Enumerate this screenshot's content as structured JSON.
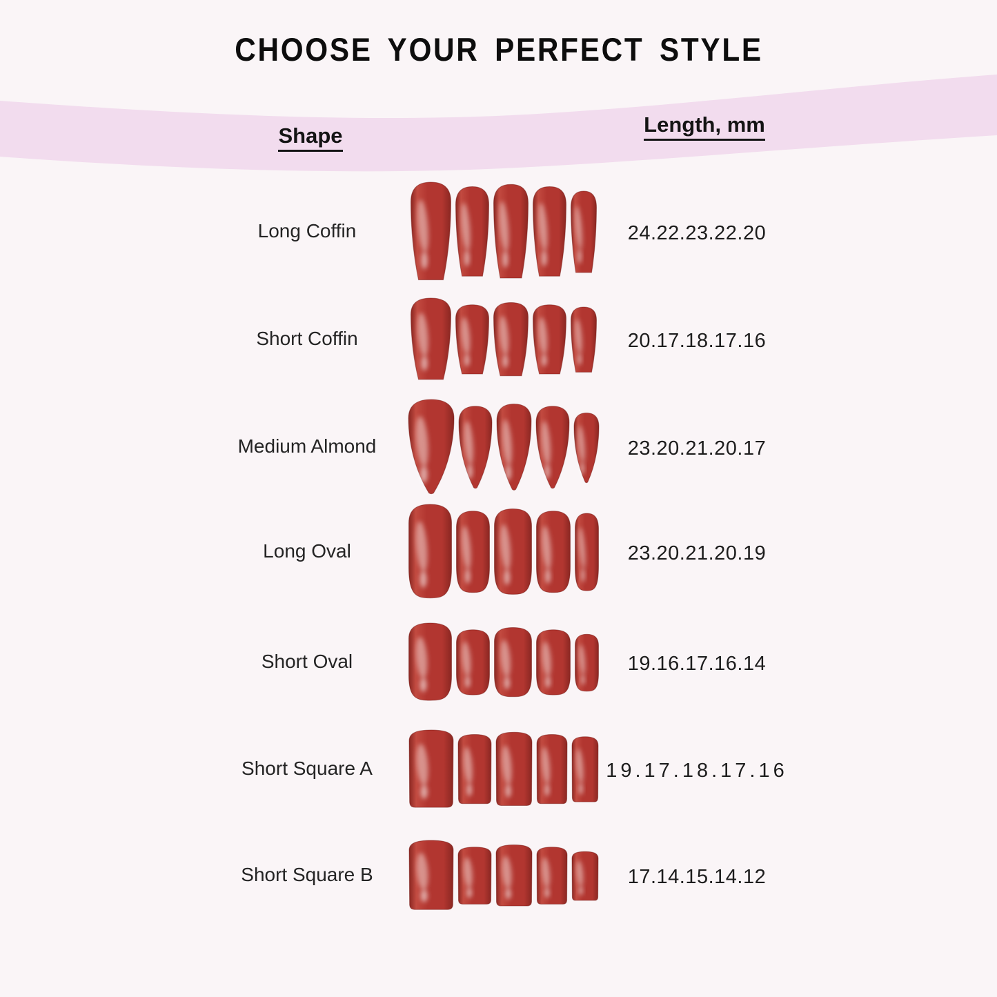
{
  "title": "CHOOSE YOUR PERFECT STYLE",
  "table": {
    "shape_header": "Shape",
    "length_header": "Length, mm",
    "rows": [
      {
        "shape": "Long Coffin",
        "nail_shape": "coffin",
        "lengths": "24.22.23.22.20",
        "lengths_mm": [
          24,
          22,
          23,
          22,
          20
        ]
      },
      {
        "shape": "Short Coffin",
        "nail_shape": "coffin",
        "lengths": "20.17.18.17.16",
        "lengths_mm": [
          20,
          17,
          18,
          17,
          16
        ]
      },
      {
        "shape": "Medium Almond",
        "nail_shape": "almond",
        "lengths": "23.20.21.20.17",
        "lengths_mm": [
          23,
          20,
          21,
          20,
          17
        ]
      },
      {
        "shape": "Long Oval",
        "nail_shape": "oval",
        "lengths": "23.20.21.20.19",
        "lengths_mm": [
          23,
          20,
          21,
          20,
          19
        ]
      },
      {
        "shape": "Short Oval",
        "nail_shape": "oval",
        "lengths": "19.16.17.16.14",
        "lengths_mm": [
          19,
          16,
          17,
          16,
          14
        ]
      },
      {
        "shape": "Short Square A",
        "nail_shape": "square",
        "lengths": "19.17.18.17.16",
        "lengths_mm": [
          19,
          17,
          18,
          17,
          16
        ]
      },
      {
        "shape": "Short Square B",
        "nail_shape": "square",
        "lengths": "17.14.15.14.12",
        "lengths_mm": [
          17,
          14,
          15,
          14,
          12
        ]
      }
    ]
  },
  "colors": {
    "background": "#faf5f7",
    "band": "#f2dcee",
    "title_text": "#0d0d0d",
    "body_text": "#242424",
    "nail_red": "#b23630",
    "nail_red_light": "#c24a40",
    "nail_red_dark": "#8a2722",
    "nail_highlight": "#f6e3e0"
  }
}
